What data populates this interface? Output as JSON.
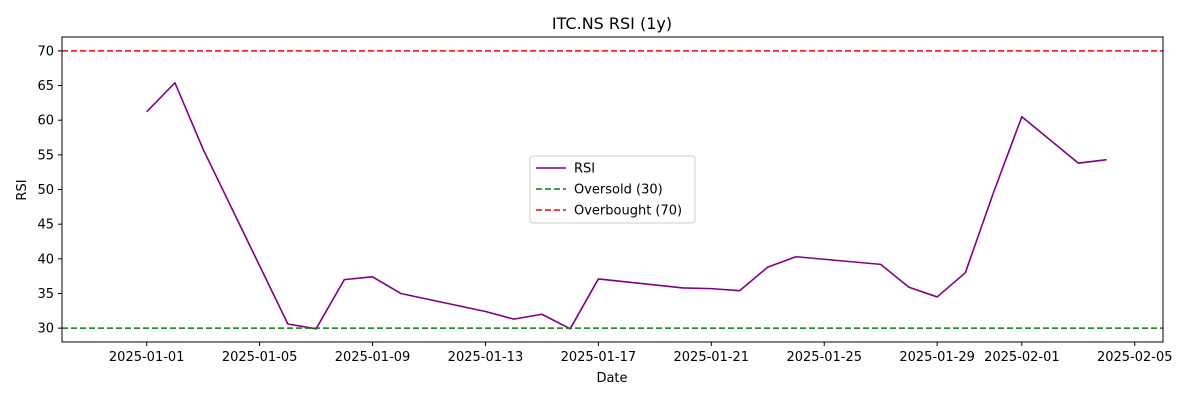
{
  "chart_data": {
    "type": "line",
    "title": "ITC.NS RSI (1y)",
    "xlabel": "Date",
    "ylabel": "RSI",
    "xlim": [
      "2024-12-29",
      "2025-02-06"
    ],
    "ylim": [
      28,
      72
    ],
    "x_ticks": [
      "2025-01-01",
      "2025-01-05",
      "2025-01-09",
      "2025-01-13",
      "2025-01-17",
      "2025-01-21",
      "2025-01-25",
      "2025-01-29",
      "2025-02-01",
      "2025-02-05"
    ],
    "y_ticks": [
      30,
      35,
      40,
      45,
      50,
      55,
      60,
      65,
      70
    ],
    "grid": false,
    "legend_position": "center",
    "series": [
      {
        "name": "RSI",
        "color": "#800080",
        "style": "solid",
        "points": [
          [
            "2025-01-01",
            61.2
          ],
          [
            "2025-01-02",
            65.4
          ],
          [
            "2025-01-03",
            55.8
          ],
          [
            "2025-01-06",
            30.6
          ],
          [
            "2025-01-07",
            29.9
          ],
          [
            "2025-01-08",
            37.0
          ],
          [
            "2025-01-09",
            37.4
          ],
          [
            "2025-01-10",
            35.0
          ],
          [
            "2025-01-13",
            32.4
          ],
          [
            "2025-01-14",
            31.3
          ],
          [
            "2025-01-15",
            32.0
          ],
          [
            "2025-01-16",
            29.9
          ],
          [
            "2025-01-17",
            37.1
          ],
          [
            "2025-01-20",
            35.8
          ],
          [
            "2025-01-21",
            35.7
          ],
          [
            "2025-01-22",
            35.4
          ],
          [
            "2025-01-23",
            38.8
          ],
          [
            "2025-01-24",
            40.3
          ],
          [
            "2025-01-27",
            39.2
          ],
          [
            "2025-01-28",
            35.9
          ],
          [
            "2025-01-29",
            34.5
          ],
          [
            "2025-01-30",
            38.0
          ],
          [
            "2025-01-31",
            49.6
          ],
          [
            "2025-02-01",
            60.5
          ],
          [
            "2025-02-03",
            53.8
          ],
          [
            "2025-02-04",
            54.3
          ]
        ]
      },
      {
        "name": "Oversold (30)",
        "color": "#008000",
        "style": "dashed",
        "y": 30
      },
      {
        "name": "Overbought (70)",
        "color": "#ff0000",
        "style": "dashed",
        "y": 70
      }
    ]
  }
}
